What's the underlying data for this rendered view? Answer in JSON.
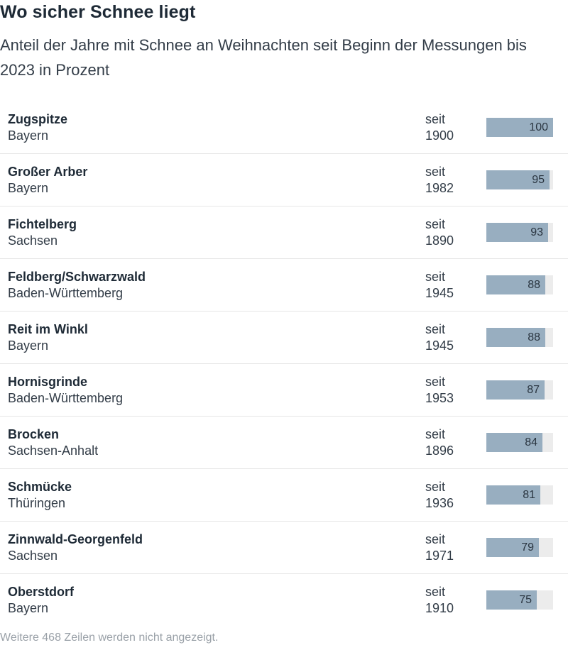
{
  "title": "Wo sicher Schnee liegt",
  "subtitle": "Anteil der Jahre mit Schnee an Weihnachten seit Beginn der Messungen bis 2023 in Prozent",
  "footer": "Weitere 468 Zeilen werden nicht angezeigt.",
  "colors": {
    "bar": "#98aec0",
    "track": "#ececec"
  },
  "chart_data": {
    "type": "table",
    "xlim": [
      0,
      100
    ],
    "rows": [
      {
        "station": "Zugspitze",
        "state": "Bayern",
        "since_label": "seit",
        "since_year": "1900",
        "value": 100
      },
      {
        "station": "Großer Arber",
        "state": "Bayern",
        "since_label": "seit",
        "since_year": "1982",
        "value": 95
      },
      {
        "station": "Fichtelberg",
        "state": "Sachsen",
        "since_label": "seit",
        "since_year": "1890",
        "value": 93
      },
      {
        "station": "Feldberg/Schwarzwald",
        "state": "Baden-Württemberg",
        "since_label": "seit",
        "since_year": "1945",
        "value": 88
      },
      {
        "station": "Reit im Winkl",
        "state": "Bayern",
        "since_label": "seit",
        "since_year": "1945",
        "value": 88
      },
      {
        "station": "Hornisgrinde",
        "state": "Baden-Württemberg",
        "since_label": "seit",
        "since_year": "1953",
        "value": 87
      },
      {
        "station": "Brocken",
        "state": "Sachsen-Anhalt",
        "since_label": "seit",
        "since_year": "1896",
        "value": 84
      },
      {
        "station": "Schmücke",
        "state": "Thüringen",
        "since_label": "seit",
        "since_year": "1936",
        "value": 81
      },
      {
        "station": "Zinnwald-Georgenfeld",
        "state": "Sachsen",
        "since_label": "seit",
        "since_year": "1971",
        "value": 79
      },
      {
        "station": "Oberstdorf",
        "state": "Bayern",
        "since_label": "seit",
        "since_year": "1910",
        "value": 75
      }
    ]
  }
}
